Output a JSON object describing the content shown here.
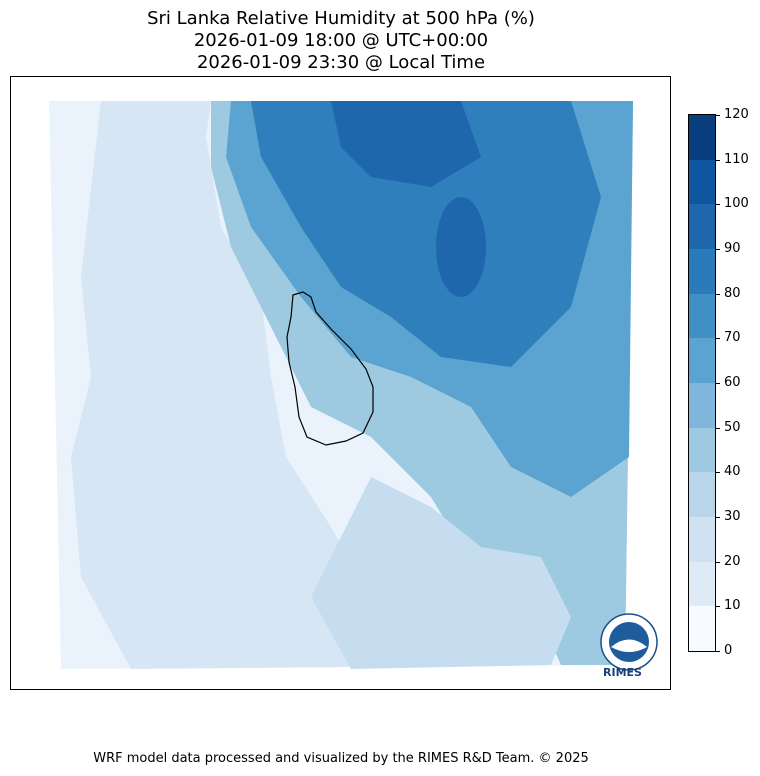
{
  "title": {
    "line1": "Sri Lanka Relative Humidity at 500 hPa (%)",
    "line2": "2026-01-09 18:00 @ UTC+00:00",
    "line3": "2026-01-09 23:30 @ Local Time"
  },
  "colorbar": {
    "ticks": [
      "0",
      "10",
      "20",
      "30",
      "40",
      "50",
      "60",
      "70",
      "80",
      "90",
      "100",
      "110",
      "120"
    ],
    "colors": [
      "#f7fbff",
      "#deebf7",
      "#d0e1f2",
      "#b8d5ea",
      "#9ecae1",
      "#7fb6da",
      "#5ba3d0",
      "#4090c5",
      "#2b7bba",
      "#1f67ad",
      "#0f559f",
      "#0a3f7f"
    ]
  },
  "logo": {
    "text": "RIMES",
    "name": "rimes-logo"
  },
  "footer": "WRF model data processed and visualized by the RIMES R&D Team. © 2025"
}
